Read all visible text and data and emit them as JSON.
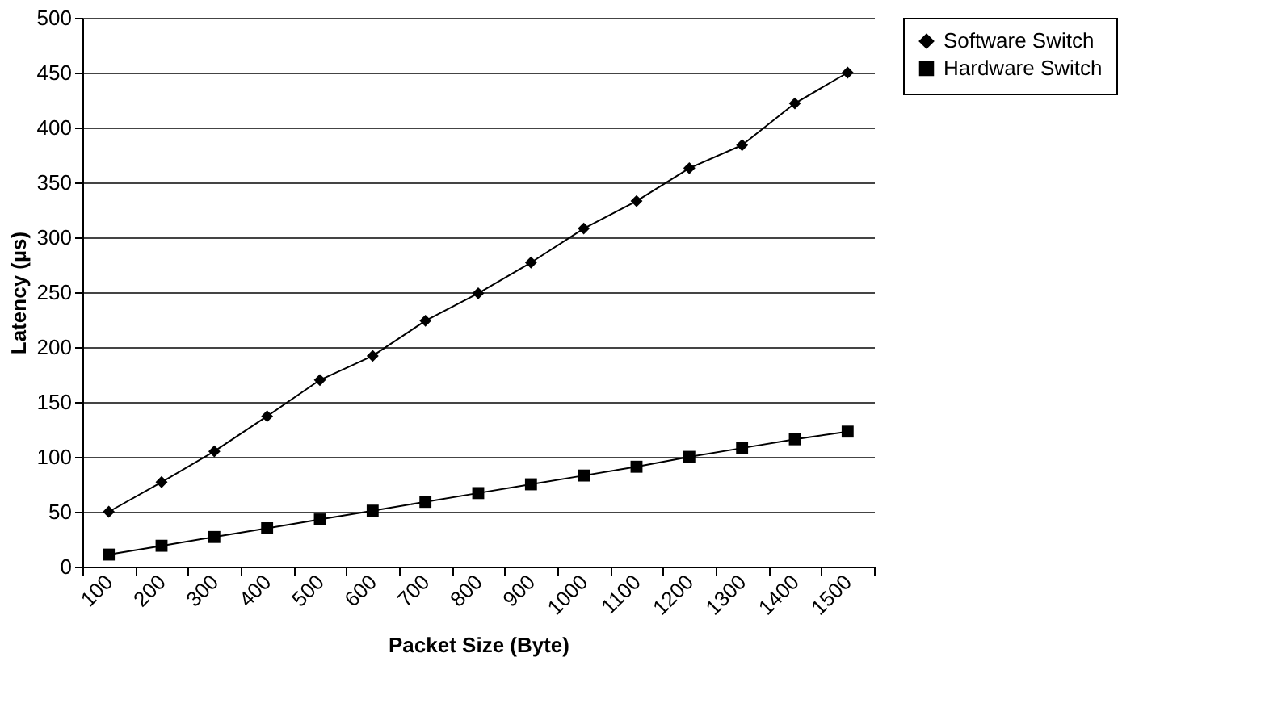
{
  "chart_data": {
    "type": "line",
    "xlabel": "Packet Size (Byte)",
    "ylabel": "Latency (µs)",
    "categories": [
      "100",
      "200",
      "300",
      "400",
      "500",
      "600",
      "700",
      "800",
      "900",
      "1000",
      "1100",
      "1200",
      "1300",
      "1400",
      "1500"
    ],
    "series": [
      {
        "name": "Software Switch",
        "color": "#000000",
        "marker": "diamond",
        "values": [
          50,
          77,
          105,
          137,
          170,
          192,
          224,
          249,
          277,
          308,
          333,
          363,
          384,
          422,
          450
        ]
      },
      {
        "name": "Hardware Switch",
        "color": "#000000",
        "marker": "square",
        "values": [
          11,
          19,
          27,
          35,
          43,
          51,
          59,
          67,
          75,
          83,
          91,
          100,
          108,
          116,
          123
        ]
      }
    ],
    "ylim": [
      0,
      500
    ],
    "yticks": [
      0,
      50,
      100,
      150,
      200,
      250,
      300,
      350,
      400,
      450,
      500
    ],
    "grid": "y",
    "legend": "right",
    "line_style": "solid"
  }
}
